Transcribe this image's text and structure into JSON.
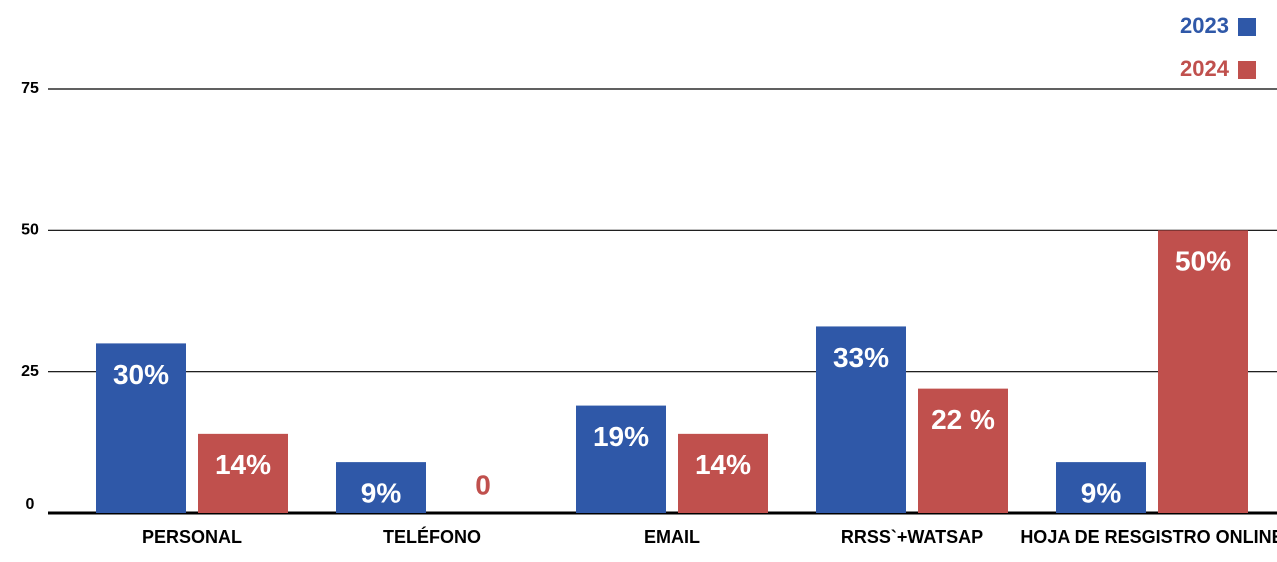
{
  "chart_data": {
    "type": "bar",
    "categories": [
      "PERSONAL",
      "TELÉFONO",
      "EMAIL",
      "RRSS`+WATSAP",
      "HOJA DE RESGISTRO ONLINE"
    ],
    "series": [
      {
        "name": "2023",
        "color": "#2f58a8",
        "values": [
          30,
          9,
          19,
          33,
          9
        ],
        "value_labels": [
          "30%",
          "9%",
          "19%",
          "33%",
          "9%"
        ]
      },
      {
        "name": "2024",
        "color": "#c0504d",
        "values": [
          14,
          0,
          14,
          22,
          50
        ],
        "value_labels": [
          "14%",
          "0",
          "14%",
          "22 %",
          "50%"
        ]
      }
    ],
    "ylim": [
      0,
      75
    ],
    "yticks": [
      0,
      25,
      50,
      75
    ],
    "grid": true,
    "legend": "top-right"
  }
}
